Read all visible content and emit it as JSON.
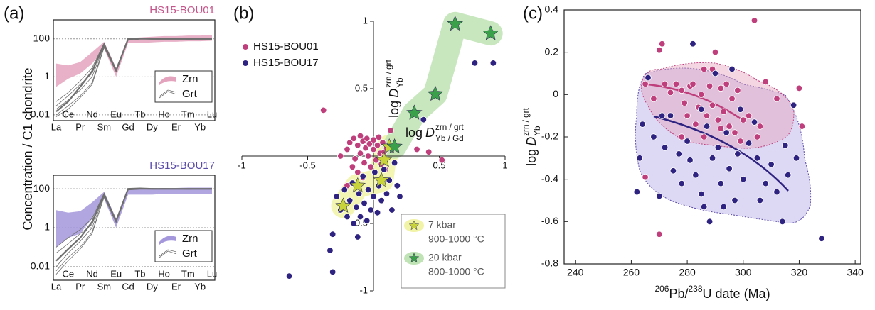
{
  "chart_data": [
    {
      "type": "line",
      "panel_label": "(a)",
      "title": "HS15-BOU01",
      "title_color": "#c4558a",
      "ylabel": "Concentration / C1 chondrite",
      "categories": [
        "La",
        "Ce",
        "Pr",
        "Nd",
        "Sm",
        "Eu",
        "Gd",
        "Tb",
        "Dy",
        "Ho",
        "Er",
        "Tm",
        "Yb",
        "Lu"
      ],
      "log_y": true,
      "ylim": [
        0.005,
        1000
      ],
      "yticks": [
        0.01,
        1,
        100
      ],
      "grid": true,
      "series": [
        {
          "name": "Zrn",
          "color": "#e4a3bd",
          "low": [
            0.3,
            0.8,
            1.5,
            5,
            30,
            1,
            60,
            60,
            65,
            70,
            70,
            75,
            75,
            80
          ],
          "high": [
            5,
            4,
            6,
            20,
            70,
            3,
            110,
            120,
            130,
            140,
            140,
            150,
            150,
            160
          ]
        },
        {
          "name": "Grt",
          "color": "#6f6f6f",
          "lines": [
            [
              0.01,
              0.03,
              0.1,
              0.5,
              40,
              2,
              90,
              100,
              100,
              100,
              100,
              100,
              100,
              100
            ],
            [
              0.02,
              0.06,
              0.2,
              1,
              45,
              2,
              95,
              100,
              105,
              100,
              100,
              100,
              100,
              105
            ],
            [
              0.015,
              0.05,
              0.3,
              2,
              50,
              2.2,
              100,
              105,
              100,
              100,
              100,
              100,
              100,
              100
            ],
            [
              0.03,
              0.1,
              0.4,
              1.5,
              55,
              2,
              95,
              100,
              100,
              100,
              100,
              95,
              100,
              100
            ],
            [
              0.008,
              0.02,
              0.08,
              0.4,
              35,
              1.8,
              85,
              95,
              95,
              95,
              95,
              95,
              95,
              95
            ],
            [
              0.05,
              0.15,
              0.6,
              3,
              60,
              2.5,
              100,
              100,
              100,
              105,
              100,
              100,
              100,
              100
            ]
          ]
        }
      ]
    },
    {
      "type": "line",
      "title": "HS15-BOU17",
      "title_color": "#5a4aa8",
      "categories": [
        "La",
        "Ce",
        "Pr",
        "Nd",
        "Sm",
        "Eu",
        "Gd",
        "Tb",
        "Dy",
        "Ho",
        "Er",
        "Tm",
        "Yb",
        "Lu"
      ],
      "log_y": true,
      "ylim": [
        0.002,
        500
      ],
      "yticks": [
        0.01,
        1,
        100
      ],
      "grid": true,
      "series": [
        {
          "name": "Zrn",
          "color": "#a597dc",
          "low": [
            0.1,
            0.3,
            0.5,
            3,
            30,
            1,
            50,
            50,
            50,
            55,
            55,
            55,
            55,
            55
          ],
          "high": [
            8,
            6,
            7,
            20,
            70,
            3,
            100,
            100,
            110,
            110,
            110,
            115,
            115,
            115
          ]
        },
        {
          "name": "Grt",
          "color": "#6f6f6f",
          "lines": [
            [
              0.004,
              0.02,
              0.08,
              0.5,
              40,
              2,
              90,
              100,
              100,
              100,
              100,
              100,
              100,
              100
            ],
            [
              0.01,
              0.05,
              0.2,
              1,
              45,
              2,
              95,
              100,
              105,
              100,
              100,
              100,
              100,
              105
            ],
            [
              0.02,
              0.08,
              0.3,
              2,
              50,
              2.2,
              100,
              105,
              100,
              100,
              100,
              100,
              100,
              100
            ],
            [
              0.05,
              0.15,
              0.5,
              1.5,
              55,
              2,
              95,
              100,
              100,
              100,
              100,
              95,
              100,
              100
            ],
            [
              0.1,
              0.3,
              0.8,
              3,
              60,
              2.5,
              100,
              100,
              100,
              105,
              100,
              100,
              100,
              100
            ],
            [
              0.006,
              0.03,
              0.1,
              0.6,
              38,
              1.8,
              88,
              95,
              95,
              95,
              95,
              95,
              95,
              95
            ]
          ]
        }
      ]
    },
    {
      "type": "scatter",
      "panel_label": "(b)",
      "xlabel": {
        "text": "log",
        "symbol": "D",
        "sup": "zrn / grt",
        "sub": "Yb / Gd"
      },
      "ylabel": {
        "text": "log",
        "symbol": "D",
        "sup": "zrn / grt",
        "sub": "Yb"
      },
      "xlim": [
        -1,
        1
      ],
      "ylim": [
        -1,
        1
      ],
      "xticks": [
        -1,
        -0.5,
        0.5,
        1
      ],
      "yticks": [
        -1,
        -0.5,
        0.5,
        1
      ],
      "series": [
        {
          "name": "HS15-BOU01",
          "color": "#bf3f7d",
          "x": [
            -0.2,
            -0.18,
            -0.15,
            -0.14,
            -0.12,
            -0.1,
            -0.1,
            -0.08,
            -0.07,
            -0.06,
            -0.05,
            -0.04,
            -0.03,
            -0.02,
            0.0,
            0.0,
            0.02,
            0.03,
            0.04,
            0.05,
            0.06,
            0.07,
            0.08,
            0.09,
            0.1,
            -0.16,
            -0.12,
            -0.38,
            -0.2,
            0.42,
            0.33,
            0.13,
            -0.25,
            0.52,
            -0.08
          ],
          "y": [
            0.05,
            0.1,
            0.13,
            -0.02,
            0.08,
            0.15,
            0.02,
            0.11,
            -0.05,
            0.06,
            0.13,
            0.0,
            0.09,
            -0.08,
            0.05,
            0.12,
            -0.03,
            0.08,
            0.14,
            0.02,
            -0.06,
            0.1,
            0.03,
            -0.1,
            0.06,
            -0.08,
            -0.12,
            0.34,
            -0.22,
            0.03,
            0.05,
            0.19,
            0.0,
            -0.03,
            -0.16
          ]
        },
        {
          "name": "HS15-BOU17",
          "color": "#2e2380",
          "x": [
            -0.28,
            -0.25,
            -0.22,
            -0.2,
            -0.18,
            -0.16,
            -0.15,
            -0.13,
            -0.11,
            -0.1,
            -0.08,
            -0.07,
            -0.05,
            -0.04,
            -0.02,
            0.0,
            0.01,
            0.03,
            0.04,
            0.06,
            0.08,
            0.1,
            0.12,
            0.14,
            0.16,
            0.18,
            -0.31,
            -0.33,
            -0.64,
            -0.31,
            0.34,
            0.27,
            0.91,
            0.77,
            0.38,
            -0.12,
            0.2
          ],
          "y": [
            -0.3,
            -0.4,
            -0.25,
            -0.45,
            -0.33,
            -0.2,
            -0.5,
            -0.38,
            -0.28,
            -0.45,
            -0.15,
            -0.35,
            -0.48,
            -0.25,
            -0.4,
            -0.3,
            -0.12,
            -0.42,
            -0.22,
            -0.33,
            -0.1,
            -0.28,
            -0.18,
            -0.4,
            -0.05,
            -0.22,
            -0.58,
            -0.7,
            -0.89,
            -0.86,
            -0.74,
            -0.6,
            0.69,
            0.69,
            0.27,
            -0.6,
            -0.3
          ]
        },
        {
          "name": "7 kbar",
          "conditions": "900-1000 °C",
          "color": "#c9d43a",
          "region_color": "#f1f3a6",
          "x": [
            -0.23,
            -0.12,
            0.06,
            0.08,
            0.12
          ],
          "y": [
            -0.37,
            -0.22,
            -0.18,
            -0.03,
            0.07
          ]
        },
        {
          "name": "20 kbar",
          "conditions": "800-1000 °C",
          "color": "#3aa14a",
          "region_color": "#bfe3b4",
          "x": [
            0.16,
            0.31,
            0.47,
            0.62,
            0.89
          ],
          "y": [
            0.07,
            0.32,
            0.46,
            0.98,
            0.91
          ]
        }
      ]
    },
    {
      "type": "scatter",
      "panel_label": "(c)",
      "xlabel": {
        "parts": [
          "206",
          "Pb/",
          "238",
          "U date (Ma)"
        ],
        "superscript": [
          true,
          false,
          true,
          false
        ]
      },
      "ylabel": {
        "text": "log",
        "symbol": "D",
        "sup": "zrn / grt",
        "sub": "Yb"
      },
      "xlim": [
        236,
        342
      ],
      "ylim": [
        -0.8,
        0.4
      ],
      "xticks": [
        240,
        260,
        280,
        300,
        320,
        340
      ],
      "yticks": [
        -0.8,
        -0.6,
        -0.4,
        -0.2,
        0,
        0.2,
        0.4
      ],
      "series": [
        {
          "name": "HS15-BOU01",
          "color": "#bf3f7d",
          "x": [
            265,
            268,
            270,
            271,
            272,
            274,
            276,
            278,
            279,
            280,
            281,
            282,
            283,
            284,
            285,
            286,
            287,
            288,
            289,
            289,
            290,
            291,
            292,
            293,
            294,
            295,
            296,
            297,
            298,
            299,
            300,
            302,
            304,
            305,
            306,
            308,
            312,
            320,
            321,
            265,
            270,
            278,
            286,
            292
          ],
          "y": [
            0.05,
            -0.02,
            0.21,
            0.24,
            0.05,
            0.01,
            0.05,
            0.02,
            -0.04,
            -0.1,
            0.04,
            0.05,
            -0.14,
            -0.06,
            0.0,
            -0.2,
            -0.1,
            0.04,
            0.12,
            -0.05,
            0.2,
            -0.12,
            0.03,
            -0.08,
            0.05,
            -0.15,
            -0.02,
            -0.18,
            0.02,
            -0.22,
            -0.12,
            -0.1,
            0.35,
            -0.2,
            -0.15,
            0.06,
            -0.02,
            0.03,
            -0.15,
            -0.39,
            -0.66,
            -0.2,
            0.12,
            -0.16
          ]
        },
        {
          "name": "HS15-BOU17",
          "color": "#2e2380",
          "x": [
            262,
            263,
            264,
            266,
            268,
            270,
            272,
            274,
            275,
            277,
            278,
            280,
            281,
            282,
            283,
            285,
            286,
            287,
            288,
            289,
            290,
            291,
            292,
            293,
            294,
            295,
            296,
            297,
            298,
            299,
            300,
            302,
            304,
            305,
            306,
            308,
            310,
            312,
            314,
            315,
            316,
            318,
            319,
            328,
            271,
            285
          ],
          "y": [
            -0.46,
            -0.3,
            -0.14,
            0.08,
            -0.2,
            -0.48,
            -0.25,
            -0.1,
            -0.36,
            -0.28,
            -0.42,
            -0.22,
            -0.31,
            0.24,
            -0.38,
            -0.47,
            -0.53,
            -0.15,
            -0.6,
            -0.3,
            0.1,
            -0.25,
            -0.42,
            -0.53,
            -0.18,
            -0.35,
            0.12,
            -0.5,
            -0.28,
            -0.07,
            -0.4,
            -0.23,
            -0.13,
            -0.3,
            -0.5,
            -0.42,
            -0.33,
            -0.46,
            -0.6,
            -0.24,
            -0.38,
            -0.05,
            -0.3,
            -0.68,
            -0.1,
            -0.07
          ]
        }
      ]
    }
  ]
}
